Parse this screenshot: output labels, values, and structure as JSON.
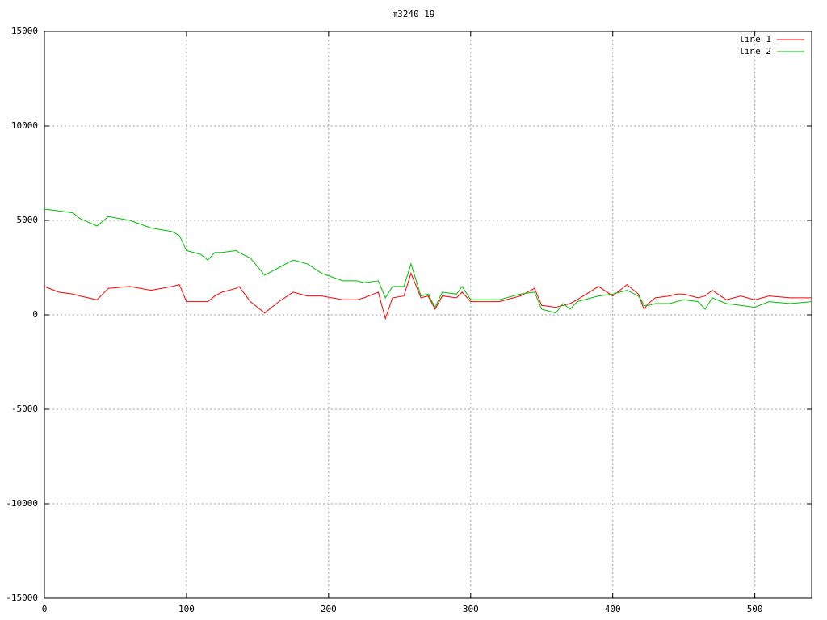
{
  "chart_data": {
    "type": "line",
    "title": "m3240_19",
    "x": [
      0,
      10,
      20,
      25,
      37,
      45,
      60,
      75,
      90,
      95,
      100,
      110,
      115,
      120,
      125,
      135,
      137,
      145,
      155,
      165,
      175,
      185,
      195,
      210,
      220,
      225,
      235,
      240,
      245,
      253,
      258,
      265,
      270,
      275,
      280,
      290,
      294,
      300,
      320,
      335,
      345,
      350,
      360,
      365,
      370,
      375,
      390,
      400,
      410,
      418,
      420,
      422,
      425,
      430,
      440,
      445,
      450,
      460,
      465,
      470,
      480,
      490,
      500,
      510,
      525,
      540
    ],
    "series": [
      {
        "name": "line 1",
        "color": "#ff0000",
        "values": [
          1500,
          1200,
          1100,
          1000,
          800,
          1400,
          1500,
          1300,
          1500,
          1600,
          700,
          700,
          700,
          1000,
          1200,
          1400,
          1500,
          700,
          100,
          700,
          1200,
          1000,
          1000,
          800,
          800,
          900,
          1200,
          -200,
          900,
          1000,
          2200,
          900,
          1000,
          300,
          1000,
          900,
          1200,
          700,
          700,
          1000,
          1400,
          500,
          400,
          500,
          600,
          800,
          1500,
          1000,
          1600,
          1100,
          700,
          300,
          600,
          900,
          1000,
          1100,
          1100,
          900,
          1000,
          1300,
          800,
          1000,
          800,
          1000,
          900,
          900
        ]
      },
      {
        "name": "line 2",
        "color": "#00c000",
        "values": [
          5600,
          5500,
          5400,
          5100,
          4700,
          5200,
          5000,
          4600,
          4400,
          4200,
          3400,
          3200,
          2900,
          3300,
          3300,
          3400,
          3300,
          3000,
          2100,
          2500,
          2900,
          2700,
          2200,
          1800,
          1800,
          1700,
          1800,
          900,
          1500,
          1500,
          2700,
          1000,
          1100,
          400,
          1200,
          1100,
          1500,
          800,
          800,
          1100,
          1200,
          300,
          100,
          600,
          300,
          700,
          1000,
          1100,
          1300,
          1000,
          800,
          500,
          500,
          600,
          600,
          700,
          800,
          700,
          300,
          900,
          600,
          500,
          400,
          700,
          600,
          700
        ]
      }
    ],
    "xlim": [
      0,
      540
    ],
    "xticks": [
      0,
      100,
      200,
      300,
      400,
      500
    ],
    "ylim": [
      -15000,
      15000
    ],
    "yticks": [
      -15000,
      -10000,
      -5000,
      0,
      5000,
      10000,
      15000
    ],
    "grid": true,
    "legend": "top-right"
  }
}
